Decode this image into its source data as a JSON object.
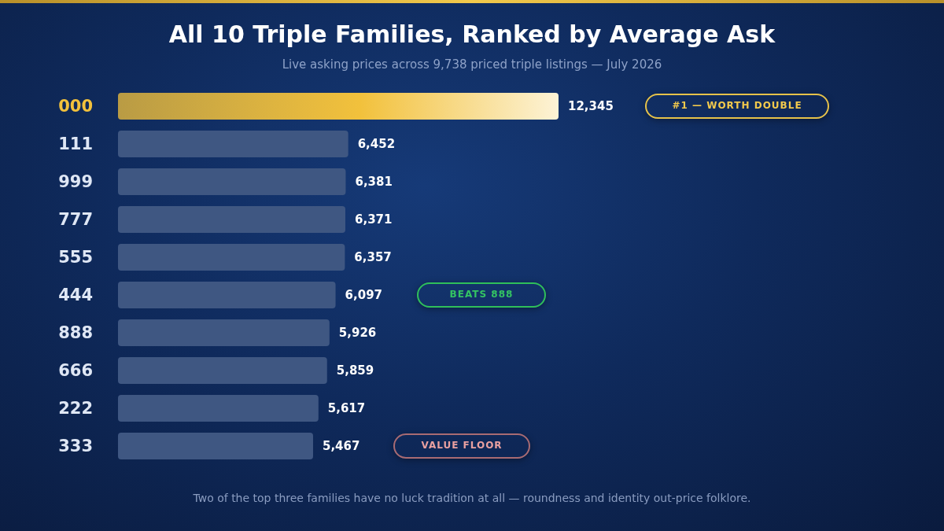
{
  "chart_data": {
    "type": "bar",
    "orientation": "horizontal",
    "title": "All 10 Triple Families, Ranked by Average Ask",
    "subtitle": "Live asking prices across 9,738 priced triple listings — July 2026",
    "categories": [
      "000",
      "111",
      "999",
      "777",
      "555",
      "444",
      "888",
      "666",
      "222",
      "333"
    ],
    "values": [
      12345,
      6452,
      6381,
      6371,
      6357,
      6097,
      5926,
      5859,
      5617,
      5467
    ],
    "colors": [
      "#f2c13c",
      "#3f5782",
      "#3f5782",
      "#3f5782",
      "#3f5782",
      "#3f5782",
      "#3f5782",
      "#3f5782",
      "#3f5782",
      "#3f5782"
    ],
    "value_labels": [
      "12,345",
      "6,452",
      "6,381",
      "6,371",
      "6,357",
      "6,097",
      "5,926",
      "5,859",
      "5,617",
      "5,467"
    ],
    "grid": false,
    "annotations": [
      "#1 — WORTH DOUBLE",
      "BEATS 888",
      "VALUE FLOOR",
      "Two of the top three families have no luck tradition at all — roundness and identity out-price folklore."
    ]
  }
}
